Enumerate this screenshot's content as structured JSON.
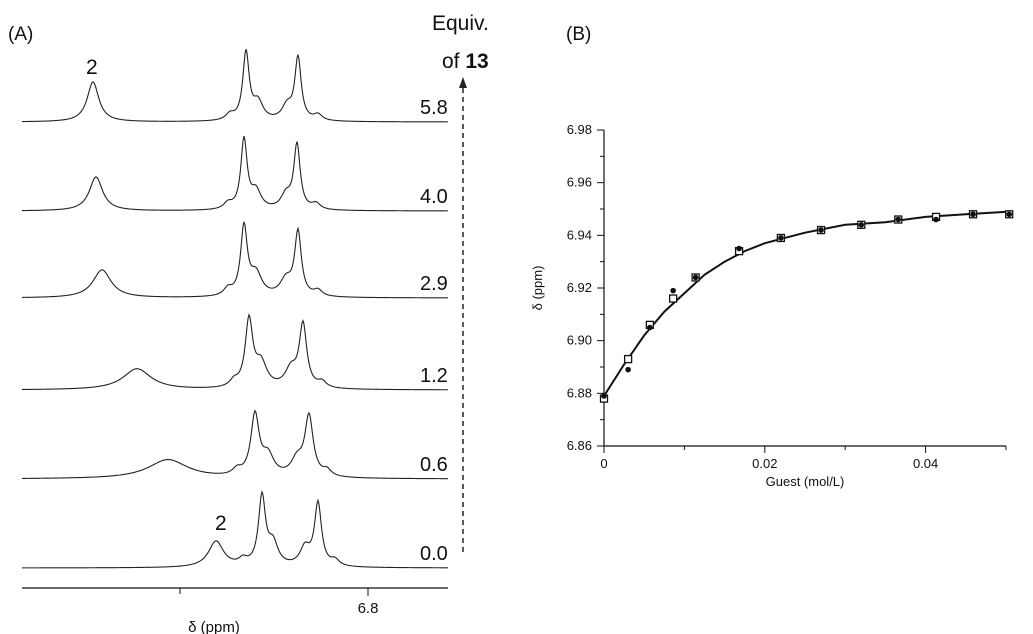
{
  "panel_a": {
    "label": "(A)",
    "legend_title_line1": "Equiv.",
    "legend_title_line2_prefix": "of ",
    "legend_title_line2_bold": "13",
    "peak_label_top": "2",
    "peak_label_bottom": "2",
    "xlabel": "δ (ppm)",
    "xtick_label": "6.8",
    "equivalents": [
      "5.8",
      "4.0",
      "2.9",
      "1.2",
      "0.6",
      "0.0"
    ]
  },
  "panel_b": {
    "label": "(B)"
  },
  "chart_data": [
    {
      "type": "line",
      "title": "",
      "xlabel": "δ (ppm)",
      "ylabel": "",
      "x_ticks": [
        "6.8"
      ],
      "series": [
        {
          "name": "5.8",
          "peak_2_position": "far left, sharp"
        },
        {
          "name": "4.0",
          "peak_2_position": "far left, sharp"
        },
        {
          "name": "2.9",
          "peak_2_position": "left, slightly broadened"
        },
        {
          "name": "1.2",
          "peak_2_position": "center-left, broad"
        },
        {
          "name": "0.6",
          "peak_2_position": "center, broad"
        },
        {
          "name": "0.0",
          "peak_2_position": "right, shoulder near main peaks"
        }
      ]
    },
    {
      "type": "scatter",
      "title": "",
      "xlabel": "Guest (mol/L)",
      "ylabel": "δ (ppm)",
      "xlim": [
        0,
        0.05
      ],
      "ylim": [
        6.86,
        6.98
      ],
      "x_ticks": [
        "0",
        "0.02",
        "0.04"
      ],
      "y_ticks": [
        "6.86",
        "6.88",
        "6.90",
        "6.92",
        "6.94",
        "6.96",
        "6.98"
      ],
      "series": [
        {
          "marker": "filled-circle",
          "x": [
            0,
            0.003,
            0.0057,
            0.0086,
            0.0114,
            0.0168,
            0.022,
            0.027,
            0.032,
            0.0366,
            0.0413,
            0.0459,
            0.0504
          ],
          "y": [
            6.879,
            6.889,
            6.905,
            6.919,
            6.924,
            6.935,
            6.939,
            6.942,
            6.944,
            6.946,
            6.946,
            6.948,
            6.948
          ]
        },
        {
          "marker": "open-square",
          "x": [
            0,
            0.003,
            0.0057,
            0.0086,
            0.0114,
            0.0168,
            0.022,
            0.027,
            0.032,
            0.0366,
            0.0413,
            0.0459,
            0.0504
          ],
          "y": [
            6.878,
            6.893,
            6.906,
            6.916,
            6.924,
            6.934,
            6.939,
            6.942,
            6.944,
            6.946,
            6.947,
            6.948,
            6.948
          ]
        },
        {
          "marker": "line-fit",
          "x": [
            0,
            0.0025,
            0.005,
            0.0075,
            0.01,
            0.0125,
            0.015,
            0.0175,
            0.02,
            0.025,
            0.03,
            0.035,
            0.04,
            0.045,
            0.0504
          ],
          "y": [
            6.879,
            6.891,
            6.902,
            6.911,
            6.918,
            6.925,
            6.93,
            6.934,
            6.937,
            6.941,
            6.944,
            6.945,
            6.947,
            6.948,
            6.949
          ]
        }
      ]
    }
  ]
}
